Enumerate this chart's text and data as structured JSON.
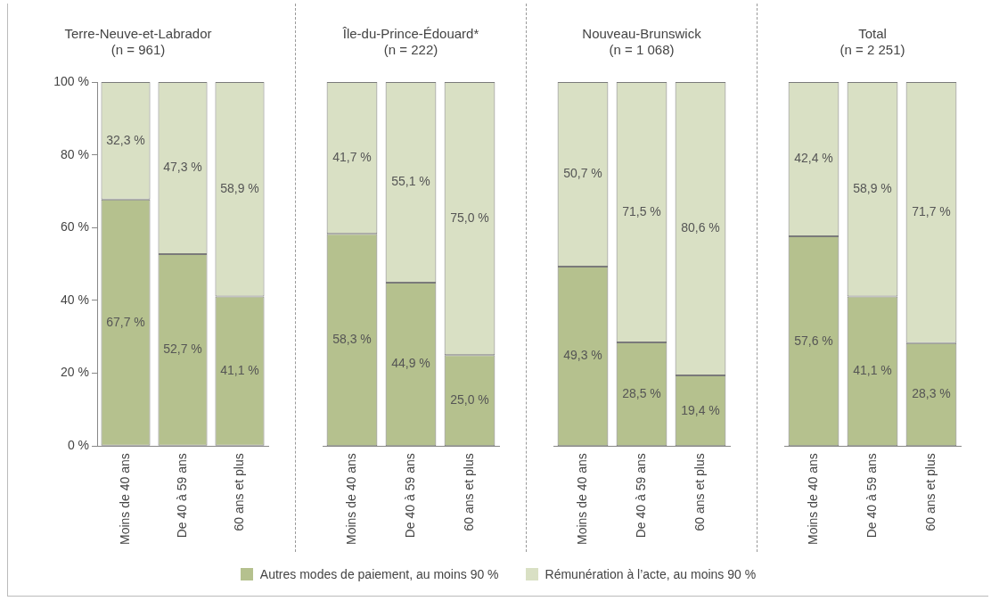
{
  "chart_data": [
    {
      "type": "bar",
      "stacked": true,
      "title": "Terre-Neuve-et-Labrador",
      "subtitle": "(n = 961)",
      "categories": [
        "Moins de 40 ans",
        "De 40 à 59 ans",
        "60 ans et plus"
      ],
      "series": [
        {
          "name": "Autres modes de paiement, au moins 90 %",
          "color": "#b5c18e",
          "values": [
            67.7,
            52.7,
            41.1
          ],
          "value_labels": [
            "67,7 %",
            "52,7 %",
            "41,1 %"
          ]
        },
        {
          "name": "Rémunération à l’acte, au moins 90 %",
          "color": "#d9e0c4",
          "values": [
            32.3,
            47.3,
            58.9
          ],
          "value_labels": [
            "32,3 %",
            "47,3 %",
            "58,9 %"
          ]
        }
      ],
      "ylim": [
        0,
        100
      ],
      "yticks": [
        {
          "value": 0,
          "label": "0 %"
        },
        {
          "value": 20,
          "label": "20 %"
        },
        {
          "value": 40,
          "label": "40 %"
        },
        {
          "value": 60,
          "label": "60 %"
        },
        {
          "value": 80,
          "label": "80 %"
        },
        {
          "value": 100,
          "label": "100 %"
        }
      ],
      "grid": false,
      "legend": "bottom"
    },
    {
      "type": "bar",
      "stacked": true,
      "title": "Île-du-Prince-Édouard*",
      "subtitle": "(n = 222)",
      "categories": [
        "Moins de 40 ans",
        "De 40 à 59 ans",
        "60 ans et plus"
      ],
      "series": [
        {
          "color": "#b5c18e",
          "values": [
            58.3,
            44.9,
            25.0
          ],
          "value_labels": [
            "58,3 %",
            "44,9 %",
            "25,0 %"
          ]
        },
        {
          "color": "#d9e0c4",
          "values": [
            41.7,
            55.1,
            75.0
          ],
          "value_labels": [
            "41,7 %",
            "55,1 %",
            "75,0 %"
          ]
        }
      ],
      "ylim": [
        0,
        100
      ],
      "grid": false,
      "tick_labels": "x"
    },
    {
      "type": "bar",
      "stacked": true,
      "title": "Nouveau-Brunswick",
      "subtitle": "(n = 1 068)",
      "categories": [
        "Moins de 40 ans",
        "De 40 à 59 ans",
        "60 ans et plus"
      ],
      "series": [
        {
          "color": "#b5c18e",
          "values": [
            49.3,
            28.5,
            19.4
          ],
          "value_labels": [
            "49,3 %",
            "28,5 %",
            "19,4 %"
          ]
        },
        {
          "color": "#d9e0c4",
          "values": [
            50.7,
            71.5,
            80.6
          ],
          "value_labels": [
            "50,7 %",
            "71,5 %",
            "80,6 %"
          ]
        }
      ],
      "ylim": [
        0,
        100
      ],
      "grid": false,
      "tick_labels": "x"
    },
    {
      "type": "bar",
      "stacked": true,
      "title": "Total",
      "subtitle": "(n = 2 251)",
      "categories": [
        "Moins de 40 ans",
        "De 40 à 59 ans",
        "60 ans et plus"
      ],
      "series": [
        {
          "color": "#b5c18e",
          "values": [
            57.6,
            41.1,
            28.3
          ],
          "value_labels": [
            "57,6 %",
            "41,1 %",
            "28,3 %"
          ]
        },
        {
          "color": "#d9e0c4",
          "values": [
            42.4,
            58.9,
            71.7
          ],
          "value_labels": [
            "42,4 %",
            "58,9 %",
            "71,7 %"
          ]
        }
      ],
      "ylim": [
        0,
        100
      ],
      "grid": false,
      "tick_labels": "x"
    }
  ]
}
